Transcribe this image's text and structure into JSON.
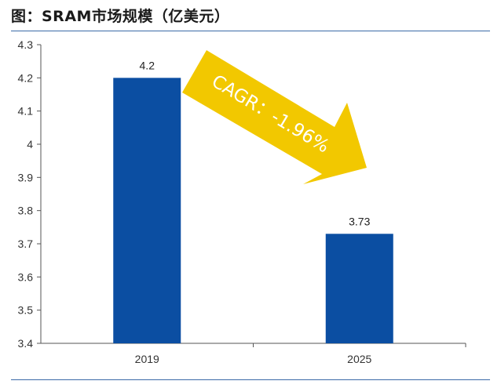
{
  "title": "图：SRAM市场规模（亿美元）",
  "colors": {
    "bar": "#0b4ea2",
    "arrow": "#f2c800",
    "rule": "#3a6aa8",
    "axis": "#555555"
  },
  "annotation": {
    "text": "CAGR：-1.96%",
    "icon": "down-right-arrow"
  },
  "chart_data": {
    "type": "bar",
    "title": "图：SRAM市场规模（亿美元）",
    "categories": [
      "2019",
      "2025"
    ],
    "values": [
      4.2,
      3.73
    ],
    "data_labels": [
      "4.2",
      "3.73"
    ],
    "ylim": [
      3.4,
      4.3
    ],
    "yticks": [
      "3.4",
      "3.5",
      "3.6",
      "3.7",
      "3.8",
      "3.9",
      "4",
      "4.1",
      "4.2",
      "4.3"
    ],
    "xlabel": "",
    "ylabel": "",
    "grid": false,
    "annotation": "CAGR：-1.96%"
  }
}
